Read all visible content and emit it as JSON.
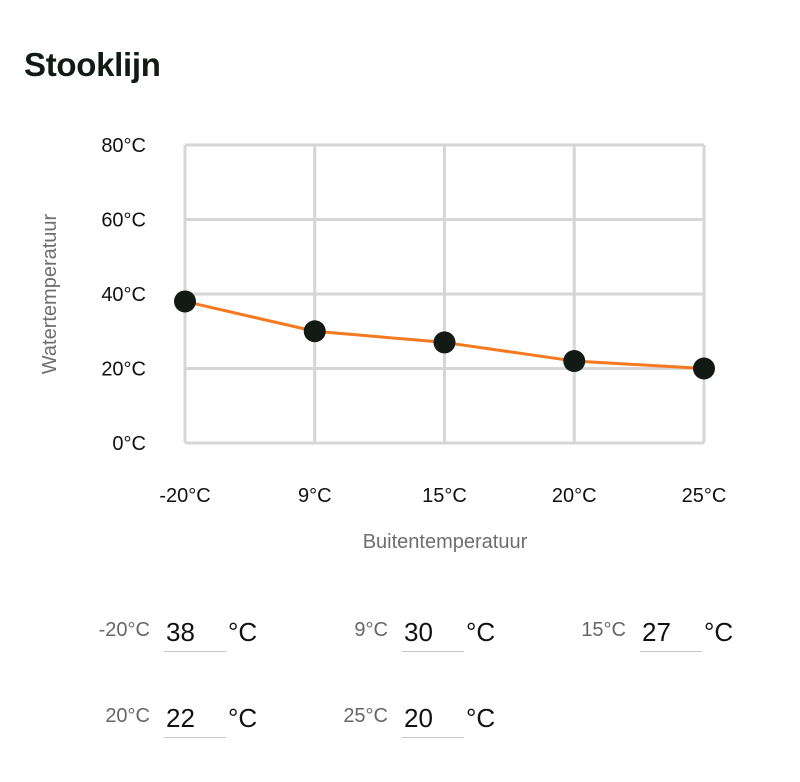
{
  "title": "Stooklijn",
  "chart_data": {
    "type": "line",
    "categories": [
      "-20°C",
      "9°C",
      "15°C",
      "20°C",
      "25°C"
    ],
    "series": [
      {
        "values": [
          38,
          30,
          27,
          22,
          20
        ],
        "color": "#f47920"
      }
    ],
    "y_ticks": [
      "0°C",
      "20°C",
      "40°C",
      "60°C",
      "80°C"
    ],
    "ylim": [
      0,
      80
    ],
    "xlabel": "Buitentemperatuur",
    "ylabel": "Watertemperatuur",
    "grid": true,
    "marker_color": "#131a16"
  },
  "fields": [
    {
      "label": "-20°C",
      "value": "38",
      "unit": "°C"
    },
    {
      "label": "9°C",
      "value": "30",
      "unit": "°C"
    },
    {
      "label": "15°C",
      "value": "27",
      "unit": "°C"
    },
    {
      "label": "20°C",
      "value": "22",
      "unit": "°C"
    },
    {
      "label": "25°C",
      "value": "20",
      "unit": "°C"
    }
  ]
}
